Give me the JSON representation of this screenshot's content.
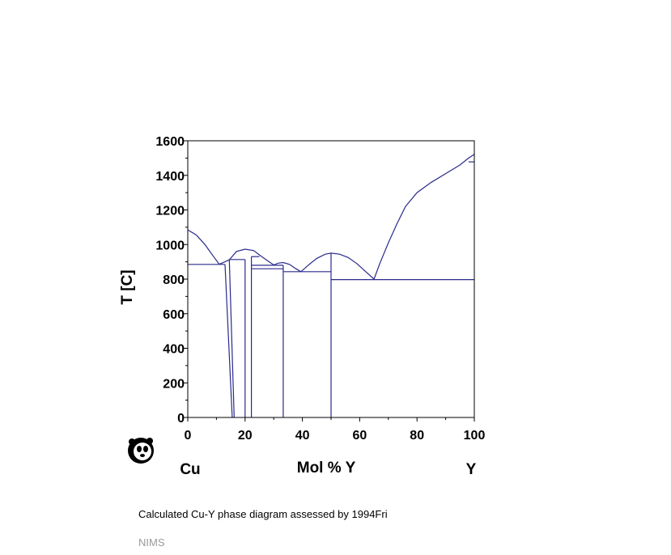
{
  "caption": "Calculated Cu-Y phase diagram assessed by 1994Fri",
  "source": "NIMS",
  "logo": "panda-icon",
  "colors": {
    "line": "#2a2a8c",
    "axis": "#000000"
  },
  "chart_data": {
    "type": "line",
    "title": "",
    "xlabel": "Mol % Y",
    "ylabel": "T [C]",
    "left_element": "Cu",
    "right_element": "Y",
    "xlim": [
      0,
      100
    ],
    "ylim": [
      0,
      1600
    ],
    "x_ticks": [
      0,
      20,
      40,
      60,
      80,
      100
    ],
    "y_ticks": [
      0,
      200,
      400,
      600,
      800,
      1000,
      1200,
      1400,
      1600
    ],
    "grid": false,
    "series": [
      {
        "values": [
          [
            0,
            1085
          ],
          [
            3,
            1055
          ],
          [
            6,
            1000
          ],
          [
            9,
            930
          ],
          [
            11,
            886
          ]
        ]
      },
      {
        "values": [
          [
            11,
            886
          ],
          [
            13,
            900
          ],
          [
            14.5,
            912
          ]
        ]
      },
      {
        "values": [
          [
            14.5,
            912
          ],
          [
            17,
            960
          ],
          [
            20,
            973
          ],
          [
            23,
            965
          ],
          [
            25,
            940
          ],
          [
            28,
            905
          ],
          [
            30,
            882
          ]
        ]
      },
      {
        "values": [
          [
            30,
            882
          ],
          [
            31.5,
            892
          ],
          [
            33.3,
            896
          ],
          [
            35.5,
            885
          ],
          [
            37.5,
            862
          ],
          [
            39.5,
            843
          ]
        ]
      },
      {
        "values": [
          [
            39.5,
            843
          ],
          [
            42,
            880
          ],
          [
            45,
            920
          ],
          [
            48,
            944
          ],
          [
            50,
            950
          ],
          [
            53,
            944
          ],
          [
            56,
            925
          ],
          [
            59,
            890
          ],
          [
            62,
            845
          ],
          [
            65,
            800
          ]
        ]
      },
      {
        "values": [
          [
            65,
            800
          ],
          [
            67,
            890
          ],
          [
            70,
            1010
          ],
          [
            73,
            1120
          ],
          [
            76,
            1220
          ],
          [
            80,
            1300
          ],
          [
            85,
            1360
          ],
          [
            90,
            1410
          ],
          [
            95,
            1460
          ],
          [
            98,
            1500
          ],
          [
            100,
            1522
          ]
        ]
      },
      {
        "values": [
          [
            98,
            1478
          ],
          [
            100,
            1478
          ]
        ]
      },
      {
        "values": [
          [
            0,
            885
          ],
          [
            13,
            885
          ]
        ]
      },
      {
        "values": [
          [
            14.5,
            913
          ],
          [
            20,
            913
          ]
        ]
      },
      {
        "values": [
          [
            22.2,
            930
          ],
          [
            25,
            930
          ]
        ]
      },
      {
        "values": [
          [
            22.2,
            880
          ],
          [
            33.3,
            880
          ]
        ]
      },
      {
        "values": [
          [
            22.2,
            860
          ],
          [
            33.3,
            860
          ]
        ]
      },
      {
        "values": [
          [
            33.3,
            843
          ],
          [
            50,
            843
          ]
        ]
      },
      {
        "values": [
          [
            50,
            797
          ],
          [
            100,
            797
          ]
        ]
      },
      {
        "values": [
          [
            13,
            885
          ],
          [
            15.5,
            0
          ]
        ]
      },
      {
        "values": [
          [
            14.5,
            913
          ],
          [
            16.2,
            0
          ]
        ]
      },
      {
        "values": [
          [
            20,
            913
          ],
          [
            20,
            0
          ]
        ]
      },
      {
        "values": [
          [
            22.2,
            930
          ],
          [
            22.2,
            0
          ]
        ]
      },
      {
        "values": [
          [
            33.3,
            880
          ],
          [
            33.3,
            0
          ]
        ]
      },
      {
        "values": [
          [
            50,
            950
          ],
          [
            50,
            0
          ]
        ]
      }
    ]
  }
}
